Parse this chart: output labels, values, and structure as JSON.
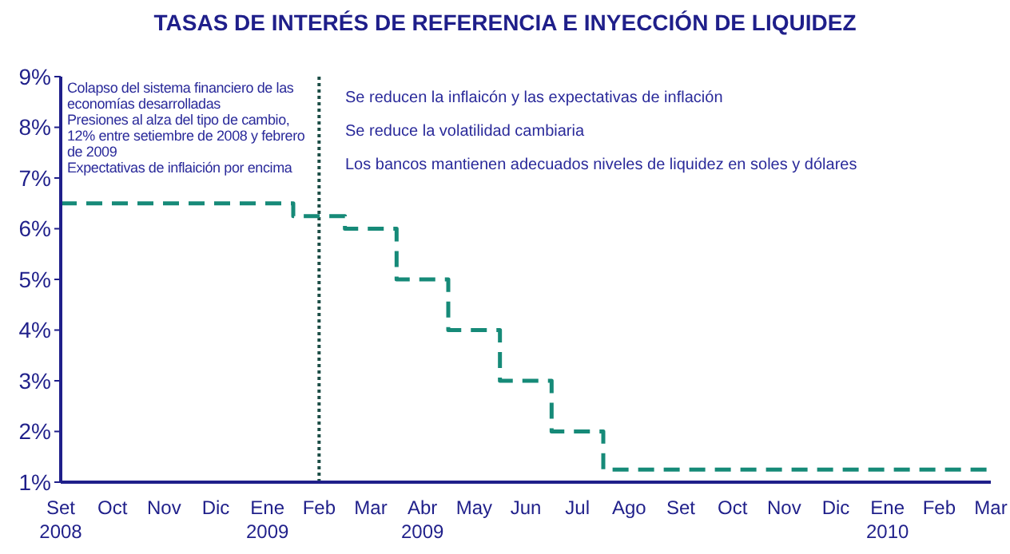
{
  "chart_data": {
    "type": "step",
    "title": "TASAS DE INTERÉS DE REFERENCIA E INYECCIÓN DE LIQUIDEZ",
    "categories": [
      "Set\n2008",
      "Oct",
      "Nov",
      "Dic",
      "Ene\n2009",
      "Feb",
      "Mar",
      "Abr\n2009",
      "May",
      "Jun",
      "Jul",
      "Ago",
      "Set",
      "Oct",
      "Nov",
      "Dic",
      "Ene\n2010",
      "Feb",
      "Mar"
    ],
    "series": [
      {
        "color": "#168a78",
        "values": [
          6.5,
          6.5,
          6.5,
          6.5,
          6.5,
          6.25,
          6.0,
          5.0,
          4.0,
          3.0,
          2.0,
          1.25,
          1.25,
          1.25,
          1.25,
          1.25,
          1.25,
          1.25,
          1.25
        ]
      }
    ],
    "line_style": "dashed",
    "marker": "none",
    "grid": false,
    "legend": false,
    "ylim": [
      1,
      9
    ],
    "yticks": [
      {
        "value": 1,
        "label": "1%"
      },
      {
        "value": 2,
        "label": "2%"
      },
      {
        "value": 3,
        "label": "3%"
      },
      {
        "value": 4,
        "label": "4%"
      },
      {
        "value": 5,
        "label": "5%"
      },
      {
        "value": 6,
        "label": "6%"
      },
      {
        "value": 7,
        "label": "7%"
      },
      {
        "value": 8,
        "label": "8%"
      },
      {
        "value": 9,
        "label": "9%"
      }
    ],
    "ref_lines": [
      {
        "axis": "x",
        "value": "Feb",
        "color": "#1b4d45",
        "line_style": "dotted"
      }
    ],
    "annotations": [
      "Colapso del sistema financiero de las economías desarrolladas",
      "Presiones al alza del tipo de cambio, 12% entre setiembre de 2008 y febrero de 2009",
      "Expectativas de inflaición por encima",
      "Se reducen la inflaicón y las expectativas de inflación",
      "Se reduce la volatilidad cambiaria",
      "Los bancos mantienen adecuados niveles de liquidez en soles y dólares"
    ]
  }
}
